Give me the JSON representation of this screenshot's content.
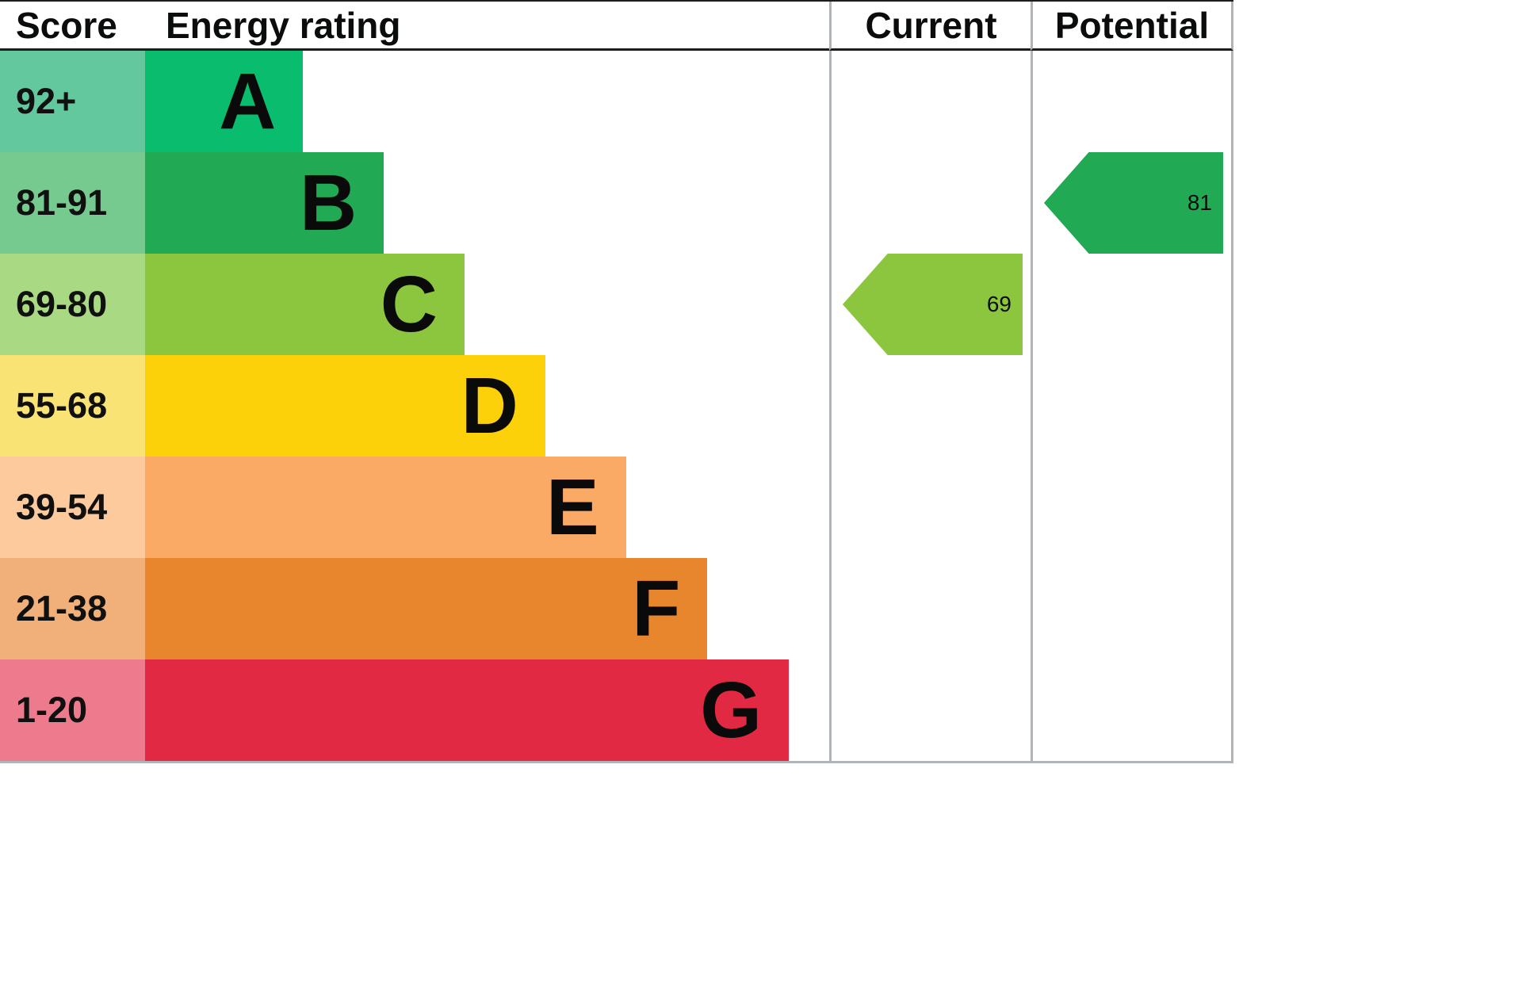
{
  "header": {
    "score": "Score",
    "energy_rating": "Energy rating",
    "current": "Current",
    "potential": "Potential"
  },
  "bands": [
    {
      "letter": "A",
      "score": "92+",
      "color": "#0abd6e",
      "score_color": "#63c89d",
      "width": "23.1%"
    },
    {
      "letter": "B",
      "score": "81-91",
      "color": "#21a954",
      "score_color": "#76ca90",
      "width": "34.9%"
    },
    {
      "letter": "C",
      "score": "69-80",
      "color": "#8cc63f",
      "score_color": "#aad983",
      "width": "46.7%"
    },
    {
      "letter": "D",
      "score": "55-68",
      "color": "#fdd10a",
      "score_color": "#f8e374",
      "width": "58.5%"
    },
    {
      "letter": "E",
      "score": "39-54",
      "color": "#fbaa66",
      "score_color": "#fcca9d",
      "width": "70.3%"
    },
    {
      "letter": "F",
      "score": "21-38",
      "color": "#e8862d",
      "score_color": "#f1af79",
      "width": "82.2%"
    },
    {
      "letter": "G",
      "score": "1-20",
      "color": "#e22944",
      "score_color": "#ee7b8d",
      "width": "94.1%"
    }
  ],
  "current": {
    "value": "69",
    "band": "C",
    "color": "#8cc63f"
  },
  "potential": {
    "value": "81",
    "band": "B",
    "color": "#21a954"
  },
  "chart_data": {
    "type": "bar",
    "categories": [
      "A",
      "B",
      "C",
      "D",
      "E",
      "F",
      "G"
    ],
    "score_ranges": [
      "92+",
      "81-91",
      "69-80",
      "55-68",
      "39-54",
      "21-38",
      "1-20"
    ],
    "bar_widths_pct": [
      23.1,
      34.9,
      46.7,
      58.5,
      70.3,
      82.2,
      94.1
    ],
    "band_colors": [
      "#0abd6e",
      "#21a954",
      "#8cc63f",
      "#fdd10a",
      "#fbaa66",
      "#e8862d",
      "#e22944"
    ],
    "column_headers": [
      "Score",
      "Energy rating",
      "Current",
      "Potential"
    ],
    "current_rating": {
      "value": 69,
      "band": "C"
    },
    "potential_rating": {
      "value": 81,
      "band": "B"
    },
    "grid": "off",
    "legend_position": "none"
  }
}
